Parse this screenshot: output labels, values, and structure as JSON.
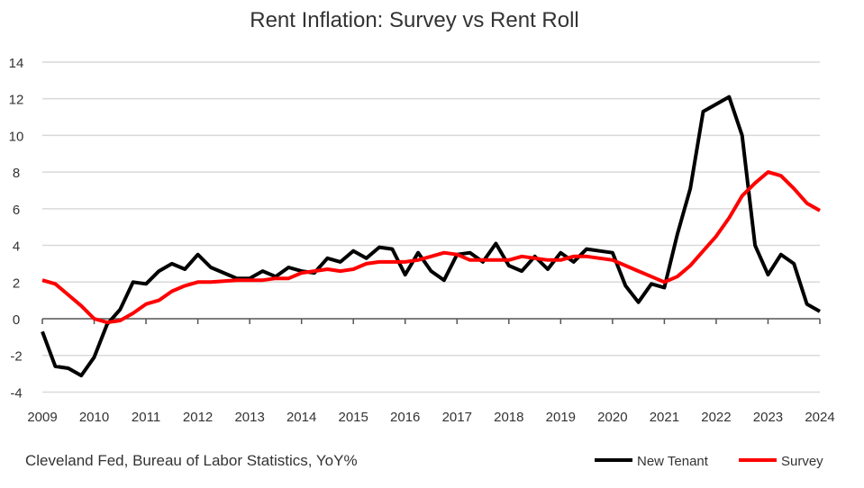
{
  "chart_data": {
    "type": "line",
    "title": "Rent Inflation: Survey vs Rent Roll",
    "source": "Cleveland Fed, Bureau of Labor Statistics, YoY%",
    "xlim": [
      2009,
      2024
    ],
    "ylim": [
      -4,
      14
    ],
    "yticks": [
      -4,
      -2,
      0,
      2,
      4,
      6,
      8,
      10,
      12,
      14
    ],
    "xticks": [
      "2009",
      "2010",
      "2011",
      "2012",
      "2013",
      "2014",
      "2015",
      "2016",
      "2017",
      "2018",
      "2019",
      "2020",
      "2021",
      "2022",
      "2023",
      "2024"
    ],
    "grid": true,
    "legend": "bottom-right",
    "x_start": 2009,
    "x_step": 0.25,
    "series": [
      {
        "name": "New Tenant",
        "color": "#000000",
        "values": [
          -0.7,
          -2.6,
          -2.7,
          -3.1,
          -2.1,
          -0.3,
          0.5,
          2.0,
          1.9,
          2.6,
          3.0,
          2.7,
          3.5,
          2.8,
          2.5,
          2.2,
          2.2,
          2.6,
          2.3,
          2.8,
          2.6,
          2.5,
          3.3,
          3.1,
          3.7,
          3.3,
          3.9,
          3.8,
          2.4,
          3.6,
          2.6,
          2.1,
          3.5,
          3.6,
          3.1,
          4.1,
          2.9,
          2.6,
          3.4,
          2.7,
          3.6,
          3.1,
          3.8,
          3.7,
          3.6,
          1.8,
          0.9,
          1.9,
          1.7,
          4.6,
          7.1,
          11.3,
          11.7,
          12.1,
          10.0,
          4.0,
          2.4,
          3.5,
          3.0,
          0.8,
          0.4
        ]
      },
      {
        "name": "Survey",
        "color": "#ff0000",
        "values": [
          2.1,
          1.9,
          1.3,
          0.7,
          0.0,
          -0.2,
          -0.1,
          0.3,
          0.8,
          1.0,
          1.5,
          1.8,
          2.0,
          2.0,
          2.05,
          2.1,
          2.1,
          2.1,
          2.2,
          2.2,
          2.5,
          2.6,
          2.7,
          2.6,
          2.7,
          3.0,
          3.1,
          3.1,
          3.1,
          3.2,
          3.4,
          3.6,
          3.5,
          3.2,
          3.2,
          3.2,
          3.2,
          3.4,
          3.3,
          3.2,
          3.2,
          3.4,
          3.4,
          3.3,
          3.2,
          2.9,
          2.6,
          2.3,
          2.0,
          2.3,
          2.9,
          3.7,
          4.5,
          5.5,
          6.7,
          7.4,
          8.0,
          7.8,
          7.1,
          6.3,
          5.9
        ]
      }
    ]
  }
}
